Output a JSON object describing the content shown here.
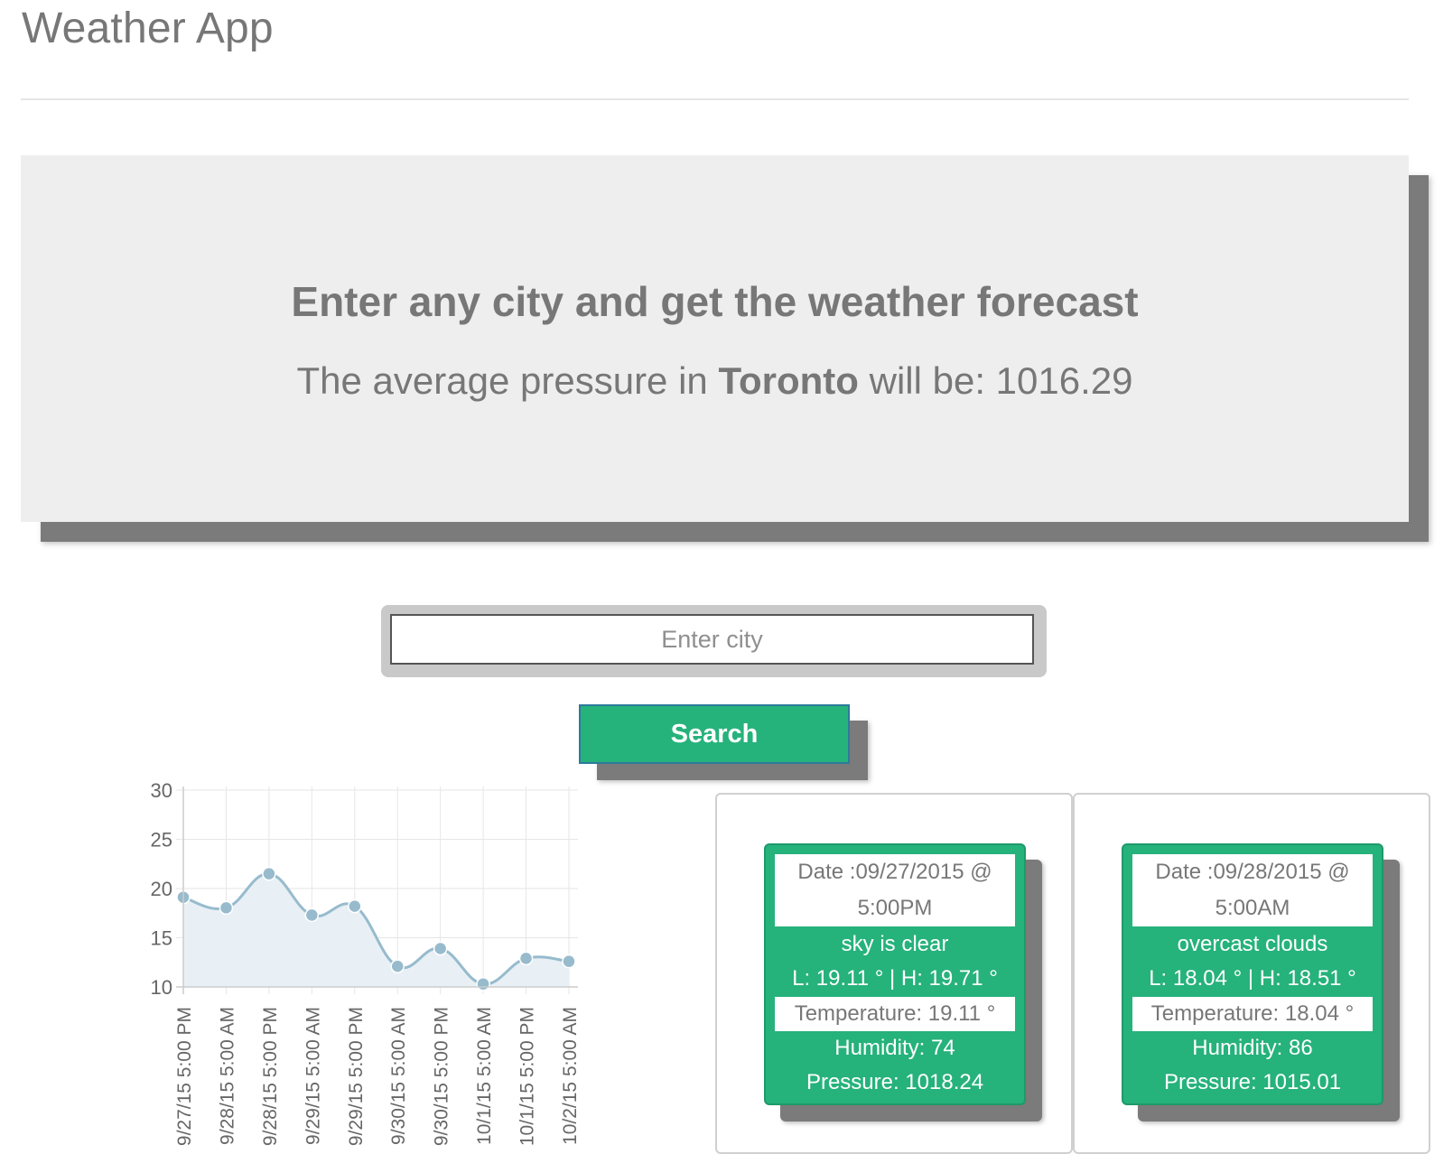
{
  "app": {
    "title": "Weather App"
  },
  "jumbotron": {
    "heading": "Enter any city and get the weather forecast",
    "sub_prefix": "The average pressure in ",
    "city": "Toronto",
    "sub_mid": " will be: ",
    "avg_pressure": "1016.29"
  },
  "search": {
    "placeholder": "Enter city",
    "value": "",
    "button_label": "Search"
  },
  "chart_data": {
    "type": "line",
    "categories": [
      "9/27/15 5:00 PM",
      "9/28/15 5:00 AM",
      "9/28/15 5:00 PM",
      "9/29/15 5:00 AM",
      "9/29/15 5:00 PM",
      "9/30/15 5:00 AM",
      "9/30/15 5:00 PM",
      "10/1/15 5:00 AM",
      "10/1/15 5:00 PM",
      "10/2/15 5:00 AM"
    ],
    "series": [
      {
        "values": [
          19.11,
          18.04,
          21.5,
          17.3,
          18.2,
          12.1,
          13.9,
          10.3,
          12.9,
          12.6
        ]
      }
    ],
    "yticks": [
      "10",
      "15",
      "20",
      "25",
      "30"
    ],
    "ylim": [
      10,
      30
    ],
    "grid": true,
    "colors": {
      "line": "#97bbcd",
      "fill": "#e8f0f5",
      "point": "#97bbcd"
    }
  },
  "forecasts": [
    {
      "date_line1": "Date :09/27/2015 @",
      "date_line2": "5:00PM",
      "description": "sky is clear",
      "range": "L: 19.11 ° | H: 19.71 °",
      "temperature": "Temperature: 19.11 °",
      "humidity": "Humidity: 74",
      "pressure": "Pressure: 1018.24"
    },
    {
      "date_line1": "Date :09/28/2015 @",
      "date_line2": "5:00AM",
      "description": "overcast clouds",
      "range": "L: 18.04 ° | H: 18.51 °",
      "temperature": "Temperature: 18.04 °",
      "humidity": "Humidity: 86",
      "pressure": "Pressure: 1015.01"
    }
  ],
  "colors": {
    "accent": "#26b27b",
    "jumbotron_bg": "#eeeeee",
    "shadow": "#7b7b7b"
  }
}
